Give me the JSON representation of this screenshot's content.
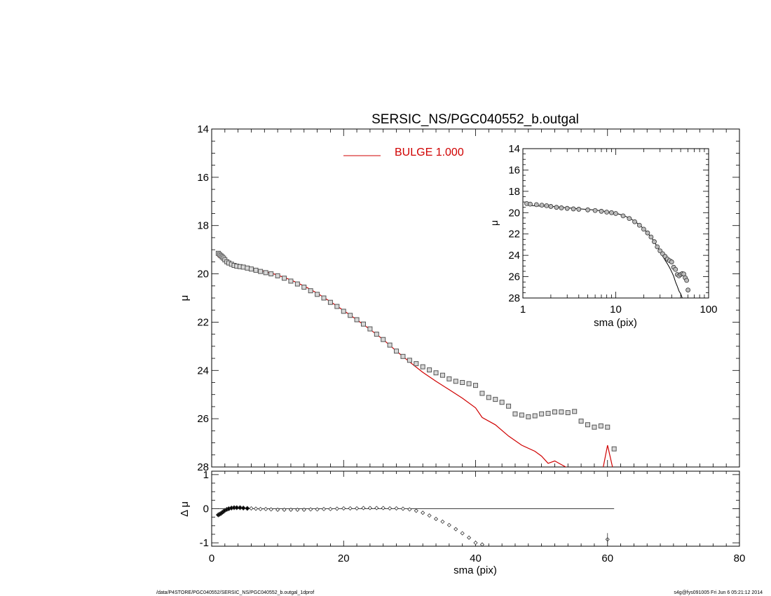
{
  "footer": {
    "left": "/data/P4STORE/PGC040552/SERSIC_NS/PGC040552_b.outgal_1dprof",
    "right": "s4g@fys091005  Fri Jun  6 05:21:12 2014"
  },
  "chart_data": [
    {
      "id": "main",
      "type": "scatter",
      "title": "SERSIC_NS/PGC040552_b.outgal",
      "xlabel": "",
      "ylabel": "μ",
      "xlim": [
        0,
        80
      ],
      "ylim": [
        28,
        14
      ],
      "yticks": [
        14,
        16,
        18,
        20,
        22,
        24,
        26,
        28
      ],
      "legend": {
        "position": "top-center",
        "entries": [
          {
            "label": "BULGE  1.000",
            "color": "#d00000"
          }
        ]
      },
      "series": [
        {
          "kind": "points",
          "marker": "open-square",
          "color": "#555555",
          "x": [
            1.0,
            1.2,
            1.4,
            1.6,
            1.8,
            2.0,
            2.3,
            2.6,
            3.0,
            3.4,
            3.8,
            4.3,
            4.8,
            5.4,
            6.0,
            6.7,
            7.4,
            8.2,
            9.0,
            10,
            11,
            12,
            13,
            14,
            15,
            16,
            17,
            18,
            19,
            20,
            21,
            22,
            23,
            24,
            25,
            26,
            27,
            28,
            29,
            30,
            31,
            32,
            33,
            34,
            35,
            36,
            37,
            38,
            39,
            40,
            41,
            42,
            43,
            44,
            45,
            46,
            47,
            48,
            49,
            50,
            51,
            52,
            53,
            54,
            55,
            56,
            57,
            58,
            59,
            60,
            61
          ],
          "y": [
            19.15,
            19.2,
            19.25,
            19.3,
            19.35,
            19.42,
            19.5,
            19.55,
            19.6,
            19.65,
            19.68,
            19.7,
            19.72,
            19.76,
            19.8,
            19.85,
            19.9,
            19.95,
            20.0,
            20.08,
            20.18,
            20.3,
            20.42,
            20.55,
            20.7,
            20.85,
            21.0,
            21.18,
            21.35,
            21.55,
            21.72,
            21.9,
            22.08,
            22.28,
            22.5,
            22.72,
            22.95,
            23.2,
            23.42,
            23.58,
            23.72,
            23.85,
            23.98,
            24.1,
            24.2,
            24.35,
            24.45,
            24.5,
            24.55,
            24.62,
            24.95,
            25.12,
            25.2,
            25.32,
            25.48,
            25.8,
            25.85,
            25.92,
            25.88,
            25.8,
            25.78,
            25.72,
            25.72,
            25.75,
            25.7,
            26.1,
            26.25,
            26.35,
            26.3,
            26.35,
            27.25
          ]
        },
        {
          "kind": "line",
          "name": "BULGE  1.000",
          "color": "#d00000",
          "x": [
            1,
            2,
            3,
            4,
            5,
            6,
            7,
            8,
            9,
            10,
            12,
            14,
            16,
            18,
            20,
            22,
            24,
            26,
            28,
            30,
            32,
            34,
            36,
            38,
            40,
            41,
            43,
            45,
            47,
            49,
            50,
            51,
            52,
            53,
            54,
            56,
            58,
            59,
            60,
            61
          ],
          "y": [
            19.3,
            19.4,
            19.55,
            19.63,
            19.7,
            19.75,
            19.82,
            19.9,
            19.97,
            20.05,
            20.25,
            20.5,
            20.8,
            21.15,
            21.52,
            21.9,
            22.3,
            22.72,
            23.2,
            23.65,
            24.08,
            24.45,
            24.8,
            25.15,
            25.55,
            25.95,
            26.25,
            26.72,
            27.1,
            27.35,
            27.55,
            27.85,
            27.75,
            27.9,
            28.05,
            28.3,
            28.9,
            28.5,
            27.1,
            28.3
          ]
        }
      ]
    },
    {
      "id": "residual",
      "type": "scatter",
      "xlabel": "sma (pix)",
      "ylabel": "Δ μ",
      "xlim": [
        0,
        80
      ],
      "xticks": [
        0,
        20,
        40,
        60,
        80
      ],
      "ylim": [
        -1.1,
        1.1
      ],
      "yticks": [
        1,
        0,
        -1
      ],
      "zero_line_xmax": 61,
      "series": [
        {
          "kind": "points",
          "marker": "open-diamond",
          "color": "#333333",
          "x": [
            1.0,
            1.2,
            1.4,
            1.6,
            1.8,
            2.0,
            2.3,
            2.6,
            3.0,
            3.4,
            3.8,
            4.3,
            4.8,
            5.4,
            6.0,
            6.7,
            7.4,
            8.2,
            9.0,
            10,
            11,
            12,
            13,
            14,
            15,
            16,
            17,
            18,
            19,
            20,
            21,
            22,
            23,
            24,
            25,
            26,
            27,
            28,
            29,
            30,
            31,
            32,
            33,
            34,
            35,
            36,
            37,
            38,
            39,
            40,
            41,
            60
          ],
          "y": [
            -0.18,
            -0.16,
            -0.14,
            -0.11,
            -0.08,
            -0.05,
            -0.02,
            0.0,
            0.02,
            0.03,
            0.03,
            0.03,
            0.02,
            0.01,
            0.01,
            0.0,
            -0.01,
            -0.01,
            -0.02,
            -0.03,
            -0.03,
            -0.03,
            -0.03,
            -0.03,
            -0.02,
            -0.02,
            -0.01,
            -0.01,
            0.0,
            0.01,
            0.01,
            0.01,
            0.02,
            0.02,
            0.02,
            0.02,
            0.01,
            0.01,
            0.0,
            -0.02,
            -0.06,
            -0.12,
            -0.2,
            -0.3,
            -0.38,
            -0.48,
            -0.6,
            -0.72,
            -0.85,
            -1.0,
            -1.05,
            -0.9
          ]
        }
      ]
    },
    {
      "id": "inset",
      "type": "line",
      "xlabel": "sma (pix)",
      "ylabel": "μ",
      "xscale": "log",
      "xlim": [
        1,
        100
      ],
      "xticks": [
        1,
        10,
        100
      ],
      "ylim": [
        28,
        14
      ],
      "yticks": [
        14,
        16,
        18,
        20,
        22,
        24,
        26,
        28
      ],
      "series": [
        {
          "kind": "points",
          "marker": "open-circle",
          "color": "#333333",
          "x": [
            1.1,
            1.2,
            1.4,
            1.6,
            1.8,
            2.0,
            2.3,
            2.6,
            3.0,
            3.5,
            4.0,
            5,
            6,
            7,
            8,
            9,
            10,
            12,
            14,
            16,
            18,
            20,
            22,
            24,
            26,
            28,
            30,
            32,
            34,
            36,
            38,
            40,
            42,
            44,
            46,
            48,
            50,
            52,
            54,
            56,
            58,
            60
          ],
          "y": [
            19.15,
            19.2,
            19.25,
            19.3,
            19.35,
            19.42,
            19.5,
            19.55,
            19.6,
            19.65,
            19.68,
            19.74,
            19.8,
            19.87,
            19.95,
            20.0,
            20.08,
            20.3,
            20.55,
            20.85,
            21.18,
            21.55,
            21.9,
            22.28,
            22.72,
            23.2,
            23.58,
            23.85,
            24.1,
            24.35,
            24.5,
            24.62,
            25.12,
            25.32,
            25.8,
            25.92,
            25.8,
            25.72,
            25.75,
            26.1,
            26.35,
            27.25
          ]
        },
        {
          "kind": "line",
          "color": "#000000",
          "x": [
            1.1,
            1.5,
            2,
            3,
            4,
            5,
            6,
            8,
            10,
            12,
            14,
            16,
            18,
            20,
            22,
            24,
            26,
            28,
            30,
            32,
            34,
            36,
            38,
            40,
            42,
            44,
            46,
            48,
            50,
            52
          ],
          "y": [
            19.3,
            19.38,
            19.4,
            19.55,
            19.63,
            19.7,
            19.75,
            19.9,
            20.05,
            20.25,
            20.5,
            20.8,
            21.15,
            21.52,
            21.9,
            22.3,
            22.72,
            23.2,
            23.65,
            24.08,
            24.45,
            24.8,
            25.15,
            25.55,
            25.95,
            26.5,
            26.9,
            27.35,
            27.6,
            28.0
          ]
        }
      ]
    }
  ]
}
